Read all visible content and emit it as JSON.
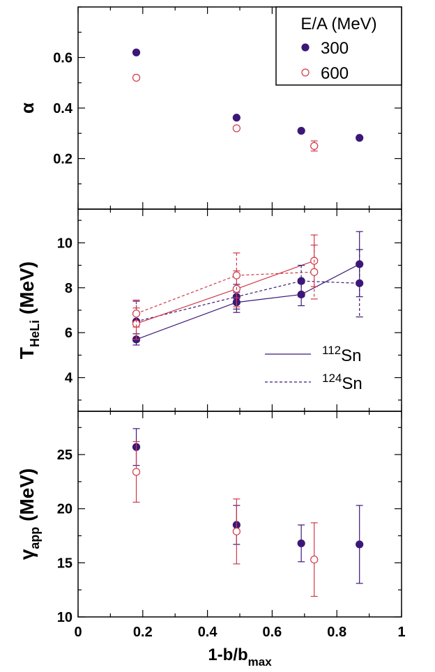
{
  "chart_data": [
    {
      "type": "scatter",
      "panel": "top",
      "ylabel": "α",
      "ylim": [
        0.0,
        0.8
      ],
      "yticks": [
        "0.2",
        "0.4",
        "0.6"
      ],
      "legend": {
        "title": "E/A (MeV)",
        "entries": [
          "300",
          "600"
        ],
        "placement": "top-right"
      },
      "series": [
        {
          "name": "300",
          "marker": "filled-circle",
          "color": "#3b1878",
          "points": [
            {
              "x": 0.18,
              "y": 0.62
            },
            {
              "x": 0.49,
              "y": 0.362
            },
            {
              "x": 0.69,
              "y": 0.31
            },
            {
              "x": 0.87,
              "y": 0.282
            }
          ]
        },
        {
          "name": "600",
          "marker": "open-circle",
          "color": "#d03848",
          "points": [
            {
              "x": 0.18,
              "y": 0.52
            },
            {
              "x": 0.49,
              "y": 0.32
            },
            {
              "x": 0.73,
              "y": 0.25,
              "err": 0.02
            }
          ]
        }
      ]
    },
    {
      "type": "line",
      "panel": "middle",
      "ylabel_main": "T",
      "ylabel_sub": "HeLi",
      "ylabel_unit": " (MeV)",
      "ylim": [
        2.5,
        11.5
      ],
      "yticks": [
        "4",
        "6",
        "8",
        "10"
      ],
      "legend": {
        "entries": [
          {
            "sup": "112",
            "text": "Sn",
            "style": "solid"
          },
          {
            "sup": "124",
            "text": "Sn",
            "style": "dashed"
          }
        ],
        "placement": "bottom-right"
      },
      "series": [
        {
          "name": "112Sn 300",
          "marker": "filled-circle",
          "color": "#3b1878",
          "dashed": false,
          "points": [
            {
              "x": 0.18,
              "y": 5.7,
              "err": 0.25
            },
            {
              "x": 0.49,
              "y": 7.35,
              "err": 0.45
            },
            {
              "x": 0.69,
              "y": 7.7,
              "err": 0.5
            },
            {
              "x": 0.87,
              "y": 9.05,
              "err": 1.45
            }
          ]
        },
        {
          "name": "124Sn 300",
          "marker": "filled-circle",
          "color": "#3b1878",
          "dashed": true,
          "points": [
            {
              "x": 0.18,
              "y": 6.5,
              "err": 0.9
            },
            {
              "x": 0.49,
              "y": 7.6,
              "err": 0.55
            },
            {
              "x": 0.69,
              "y": 8.3,
              "err": 0.7
            },
            {
              "x": 0.87,
              "y": 8.2,
              "err": 1.5
            }
          ]
        },
        {
          "name": "112Sn 600",
          "marker": "open-circle",
          "color": "#d03848",
          "dashed": false,
          "points": [
            {
              "x": 0.18,
              "y": 6.4,
              "err": 0.7
            },
            {
              "x": 0.49,
              "y": 7.95,
              "err": 0.8
            },
            {
              "x": 0.73,
              "y": 9.2,
              "err": 1.15
            }
          ]
        },
        {
          "name": "124Sn 600",
          "marker": "open-circle",
          "color": "#d03848",
          "dashed": true,
          "points": [
            {
              "x": 0.18,
              "y": 6.85,
              "err": 0.6
            },
            {
              "x": 0.49,
              "y": 8.55,
              "err": 1.0
            },
            {
              "x": 0.73,
              "y": 8.7,
              "err": 1.2
            }
          ]
        }
      ]
    },
    {
      "type": "scatter",
      "panel": "bottom",
      "ylabel_main": "γ",
      "ylabel_sub": "app",
      "ylabel_unit": " (MeV)",
      "ylim": [
        10,
        29
      ],
      "yticks": [
        "10",
        "15",
        "20",
        "25"
      ],
      "xlabel_main": "1-b/b",
      "xlabel_sub": "max",
      "xlim": [
        0,
        1
      ],
      "xticks": [
        "0",
        "0.2",
        "0.4",
        "0.6",
        "0.8",
        "1"
      ],
      "series": [
        {
          "name": "300",
          "marker": "filled-circle",
          "color": "#3b1878",
          "points": [
            {
              "x": 0.18,
              "y": 25.7,
              "err": 1.7
            },
            {
              "x": 0.49,
              "y": 18.5,
              "err": 1.8
            },
            {
              "x": 0.69,
              "y": 16.8,
              "err": 1.7
            },
            {
              "x": 0.87,
              "y": 16.7,
              "err": 3.6
            }
          ]
        },
        {
          "name": "600",
          "marker": "open-circle",
          "color": "#d03848",
          "points": [
            {
              "x": 0.18,
              "y": 23.4,
              "err": 2.8
            },
            {
              "x": 0.49,
              "y": 17.9,
              "err": 3.0
            },
            {
              "x": 0.73,
              "y": 15.3,
              "err": 3.4
            }
          ]
        }
      ]
    }
  ]
}
